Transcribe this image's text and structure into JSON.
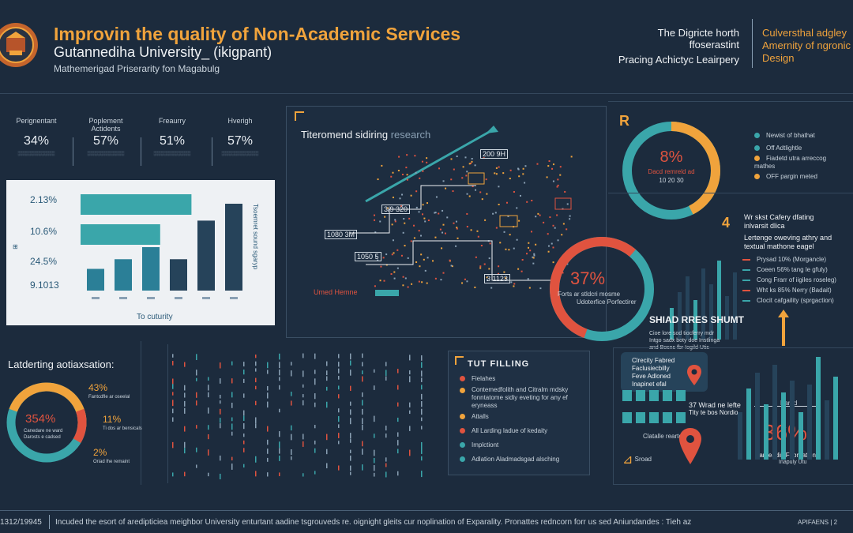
{
  "colors": {
    "bg": "#1c2b3d",
    "orange": "#f0a33c",
    "teal": "#3aa6aa",
    "red": "#e0533f",
    "navy": "#26435a",
    "white_panel": "#eef1f4"
  },
  "header": {
    "title": "Improvin the quality of Non-Academic Services",
    "university": "Gutannediha University_ (ikigpant)",
    "subtitle": "Mathemerigad Priserarity fon Magabulg",
    "center_line1": "The Digricte horth",
    "center_line2": "ffoserastint",
    "center_line3": "Pracing Achictyc Leairpery",
    "right_line1": "Culversthal adgley",
    "right_line2": "Amernity of ngronic",
    "right_line3": "Design"
  },
  "stats": [
    {
      "label": "Perignentant",
      "value": "34%"
    },
    {
      "label": "Poplement Actidents",
      "value": "57%"
    },
    {
      "label": "Freaurry",
      "value": "51%"
    },
    {
      "label": "Hverigh",
      "value": "57%"
    }
  ],
  "bar_panel": {
    "values_text": [
      "2.13%",
      "10.6%",
      "24.5%",
      "9.1013"
    ],
    "xlabel": "To cuturity",
    "side_label": "Tsoemret sound sgaryp"
  },
  "bar_chart_data": {
    "hbars": [
      0.78,
      0.56
    ],
    "vbars": [
      0.18,
      0.26,
      0.36,
      0.26,
      0.58,
      0.72
    ]
  },
  "network": {
    "title_a": "Titeromend sidiring",
    "title_b": "research",
    "nodes": [
      "200 9H",
      "1080 3M",
      "3/9 320",
      "1050 5",
      "3 1123"
    ],
    "legend": "Umed Hemne"
  },
  "ring1": {
    "marker": "R",
    "value": "8%",
    "caption": "Dacd remreld ad",
    "caption2": "10 20 30"
  },
  "ring1_legend": [
    "Newist of bhathat",
    "Off Adtlightle",
    "Fiadetd utra arreccog mathes",
    "OFF pargin meted"
  ],
  "ring2": {
    "value": "37%",
    "caption": "Forts ar stldcri mosme",
    "caption2": "Udoterfice Porfectirer"
  },
  "right_mid": {
    "marker": "4",
    "title": "Wr skst Cafery dfating",
    "title2": "inlvarsit dlica",
    "sub": "Lertenge oweving athry and",
    "sub2": "textual mathone eagel",
    "legend": [
      "Prysad 10% (Morgancle)",
      "Coeen 56% tang le gfuly)",
      "Cong Frarr of iigiles roseleg)",
      "Wht ks 85% Nerry (Badait)",
      "Clocit cafgaility (sprgaction)"
    ]
  },
  "shad": {
    "title": "SHIAD RRES SHUMT",
    "lines": [
      "Cioe lore sod tiocferry mdr",
      "Intgo sadx boty doe Instlinga",
      "and Bosns fbr Iogild Utis"
    ]
  },
  "ring3": {
    "title": "Latderting aotiaxsation:",
    "center": "354%",
    "caption": "Canedare ne ward",
    "caption2": "Darosts e cadsed",
    "items": [
      {
        "value": "43%",
        "text": "Fantcdfle ar oseelal"
      },
      {
        "value": "11%",
        "text": "Ti dos ar bensicals"
      },
      {
        "value": "2%",
        "text": "Oriad lhe remaint"
      }
    ]
  },
  "filling": {
    "title": "TUT FILLING",
    "items": [
      {
        "color": "#e0533f",
        "text": "Fielahes"
      },
      {
        "color": "#f0a33c",
        "text": "Contemedfolith and Citralm mdsky fonntatome sidiy eveting for any ef eryneass"
      },
      {
        "color": "#f0a33c",
        "text": "Attalls"
      },
      {
        "color": "#e0533f",
        "text": "All Larding ladue of kedaity"
      },
      {
        "color": "#3aa6aa",
        "text": "Implctiont"
      },
      {
        "color": "#3aa6aa",
        "text": "Adlation Aladmadsgad alsching"
      }
    ]
  },
  "bottom_right": {
    "label1": "Clrecity Fabred",
    "label2": "Faclusiecbilly",
    "label3": "Feve Adloned",
    "label4": "Inapinet efal",
    "mid": "37 Wrad ne lefte",
    "mid2": "Tity te bos Nordio",
    "foot": "Clatalle reartory",
    "sroad": "Sroad",
    "pct": "36%",
    "pct_label": "Parud",
    "pct_cap": "Parbeadir. Fabreation",
    "pct_cap2": "Inapuly Utu"
  },
  "footer": {
    "left": "1312/19945",
    "text": "Incuded the esort of aredipticiea meighbor University enturtant aadine tsgrouveds re. oignight gleits cur noplination of Exparality. Pronattes redncorn forr us sed Aniundandes : Tieh az",
    "right": "APIFAENS | 2"
  }
}
